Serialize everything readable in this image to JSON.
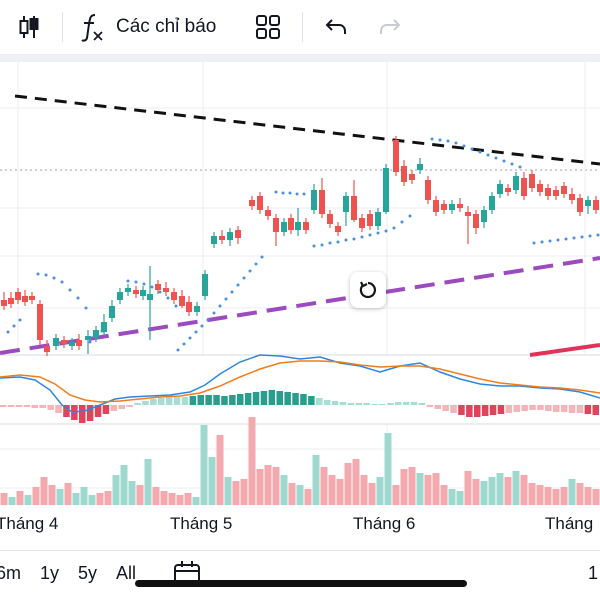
{
  "toolbar": {
    "indicators_label": "Các chỉ báo",
    "icons": [
      "candlestick-icon",
      "function-icon",
      "layout-grid-icon",
      "undo-icon",
      "redo-icon"
    ]
  },
  "x_axis": {
    "labels": [
      "Tháng 4",
      "Tháng 5",
      "Tháng 6",
      "Tháng"
    ]
  },
  "range_buttons": [
    "6m",
    "1y",
    "5y",
    "All"
  ],
  "bottom_right_label": "1",
  "colors": {
    "up": "#26a69a",
    "down": "#ef5350",
    "up_volume": "#9fd8cf",
    "down_volume": "#f3a9ae",
    "trend_black": "#111111",
    "trend_purple": "#9c4ac0",
    "trend_red": "#e0325a",
    "psar": "#4a90e2",
    "macd_line": "#2e86de",
    "signal_line": "#f07d1a"
  }
}
